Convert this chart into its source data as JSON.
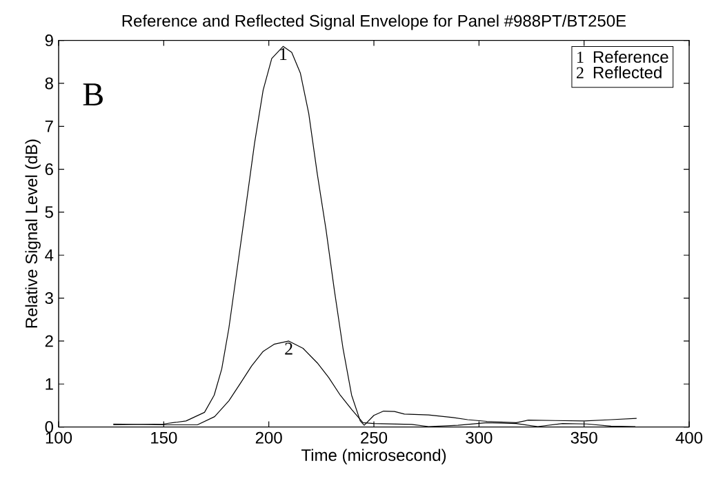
{
  "chart_data": {
    "type": "line",
    "title": "Reference and Reflected Signal Envelope for Panel #988PT/BT250E",
    "xlabel": "Time (microsecond)",
    "ylabel": "Relative Signal Level (dB)",
    "xlim": [
      100,
      400
    ],
    "ylim": [
      0,
      9
    ],
    "xticks": [
      100,
      150,
      200,
      250,
      300,
      350,
      400
    ],
    "yticks": [
      0,
      1,
      2,
      3,
      4,
      5,
      6,
      7,
      8,
      9
    ],
    "grid": false,
    "legend": "top right",
    "marker": "none",
    "line_style": "solid",
    "annotations": [
      "1",
      "2",
      "B"
    ],
    "series": [
      {
        "name": "Reference",
        "color": "#000000",
        "x": [
          126,
          150,
          160.6,
          169.4,
          174,
          177.6,
          181,
          185,
          189,
          193.2,
          197.3,
          201.4,
          206.8,
          210.9,
          215,
          219,
          223.1,
          227.2,
          231.2,
          235.3,
          239.4,
          243.5,
          245.4,
          250,
          254.6,
          259.8,
          264.5,
          276,
          287.6,
          294.6,
          303.8,
          317.7,
          323.5,
          336.2,
          350.1,
          362.8,
          375
        ],
        "values": [
          0.05,
          0.07,
          0.14,
          0.34,
          0.74,
          1.35,
          2.3,
          3.7,
          5.1,
          6.6,
          7.84,
          8.58,
          8.86,
          8.72,
          8.24,
          7.3,
          5.88,
          4.6,
          3.18,
          1.83,
          0.74,
          0.14,
          0.04,
          0.27,
          0.37,
          0.36,
          0.3,
          0.28,
          0.22,
          0.17,
          0.13,
          0.1,
          0.16,
          0.15,
          0.14,
          0.17,
          0.2
        ]
      },
      {
        "name": "Reflected",
        "color": "#000000",
        "x": [
          126,
          150,
          166,
          174.2,
          181,
          186.4,
          191.8,
          197.3,
          202.7,
          209.5,
          216.3,
          223.1,
          228.5,
          234,
          239.4,
          244.8,
          250,
          268,
          276,
          290,
          303.8,
          317.7,
          328,
          339.7,
          351.3,
          362.8,
          374.4
        ],
        "values": [
          0.07,
          0.05,
          0.05,
          0.24,
          0.61,
          1.01,
          1.42,
          1.76,
          1.93,
          2.0,
          1.83,
          1.49,
          1.15,
          0.74,
          0.41,
          0.1,
          0.08,
          0.06,
          0.01,
          0.04,
          0.1,
          0.08,
          0.01,
          0.08,
          0.07,
          0.02,
          0.01
        ]
      }
    ]
  }
}
